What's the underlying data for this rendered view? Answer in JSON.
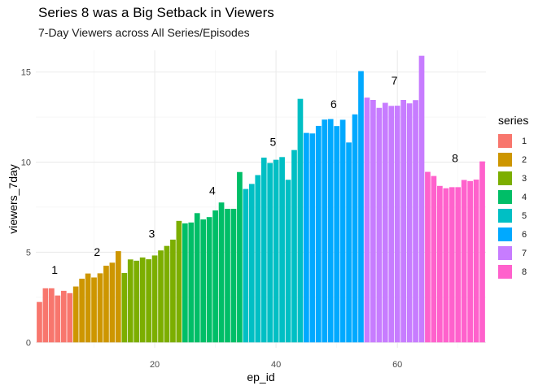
{
  "title": "Series 8 was a Big Setback in Viewers",
  "subtitle": "7-Day Viewers across All Series/Episodes",
  "chart_data": {
    "type": "bar",
    "xlabel": "ep_id",
    "ylabel": "viewers_7day",
    "xlim": [
      0.4,
      74.6
    ],
    "ylim": [
      -0.3,
      16.2
    ],
    "xticks": [
      20,
      40,
      60
    ],
    "yticks": [
      0,
      5,
      10,
      15
    ],
    "grid": true,
    "legend": {
      "title": "series",
      "placement": "right"
    },
    "series": [
      {
        "name": "1",
        "color": "#F8766D",
        "x": [
          1,
          2,
          3,
          4,
          5,
          6
        ],
        "values": [
          2.24,
          3.0,
          3.0,
          2.6,
          2.86,
          2.73
        ]
      },
      {
        "name": "2",
        "color": "#CD9600",
        "x": [
          7,
          8,
          9,
          10,
          11,
          12,
          13,
          14
        ],
        "values": [
          3.1,
          3.53,
          3.82,
          3.6,
          3.83,
          4.25,
          4.42,
          5.06
        ]
      },
      {
        "name": "3",
        "color": "#7CAE00",
        "x": [
          15,
          16,
          17,
          18,
          19,
          20,
          21,
          22,
          23,
          24
        ],
        "values": [
          3.85,
          4.6,
          4.53,
          4.71,
          4.61,
          4.82,
          5.1,
          5.35,
          5.7,
          6.74
        ]
      },
      {
        "name": "4",
        "color": "#00BE67",
        "x": [
          25,
          26,
          27,
          28,
          29,
          30,
          31,
          32,
          33,
          34
        ],
        "values": [
          6.6,
          6.65,
          7.17,
          6.82,
          6.95,
          7.32,
          7.76,
          7.41,
          7.41,
          9.45
        ]
      },
      {
        "name": "5",
        "color": "#00BFC4",
        "x": [
          35,
          36,
          37,
          38,
          39,
          40,
          41,
          42,
          43,
          44
        ],
        "values": [
          8.51,
          8.79,
          9.28,
          10.25,
          9.95,
          10.13,
          10.28,
          9.02,
          10.67,
          13.51
        ]
      },
      {
        "name": "6",
        "color": "#00A9FF",
        "x": [
          45,
          46,
          47,
          48,
          49,
          50,
          51,
          52,
          53,
          54
        ],
        "values": [
          11.62,
          11.59,
          12.01,
          12.36,
          12.39,
          12.0,
          12.35,
          11.09,
          12.65,
          15.05
        ]
      },
      {
        "name": "7",
        "color": "#C77CFF",
        "x": [
          55,
          56,
          57,
          58,
          59,
          60,
          61,
          62,
          63,
          64
        ],
        "values": [
          13.58,
          13.45,
          13.01,
          13.29,
          13.12,
          13.13,
          13.45,
          13.26,
          13.44,
          15.9
        ]
      },
      {
        "name": "8",
        "color": "#FF61CC",
        "x": [
          65,
          66,
          67,
          68,
          69,
          70,
          71,
          72,
          73,
          74
        ],
        "values": [
          9.46,
          9.23,
          8.68,
          8.55,
          8.61,
          8.61,
          9.01,
          8.95,
          9.03,
          10.04
        ]
      }
    ],
    "annotations": [
      {
        "text": "1",
        "x": 3.5,
        "y": 3.8
      },
      {
        "text": "2",
        "x": 10.5,
        "y": 4.8
      },
      {
        "text": "3",
        "x": 19.5,
        "y": 5.8
      },
      {
        "text": "4",
        "x": 29.5,
        "y": 8.2
      },
      {
        "text": "5",
        "x": 39.5,
        "y": 10.9
      },
      {
        "text": "6",
        "x": 49.5,
        "y": 13.0
      },
      {
        "text": "7",
        "x": 59.5,
        "y": 14.3
      },
      {
        "text": "8",
        "x": 69.5,
        "y": 10.0
      }
    ]
  }
}
